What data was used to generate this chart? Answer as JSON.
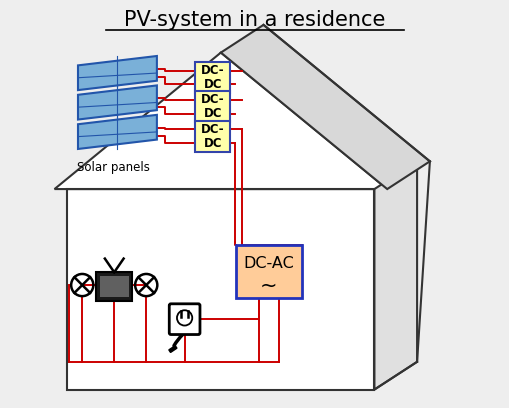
{
  "title": "PV-system in a residence",
  "title_fontsize": 15,
  "bg_color": "#eeeeee",
  "house_color": "#333333",
  "wire_color": "#cc0000",
  "panel_fill": "#7ab0d8",
  "panel_edge": "#2255aa",
  "panel_fill2": "#aaccee",
  "dcdc_fill": "#ffffaa",
  "dcdc_edge": "#3344aa",
  "dcac_fill": "#ffcc99",
  "dcac_edge": "#2233bb",
  "text_color": "#000000",
  "solar_label": "Solar panels",
  "dcdc_text": "DC-\nDC",
  "dcac_text": "DC-AC",
  "tilde": "~"
}
